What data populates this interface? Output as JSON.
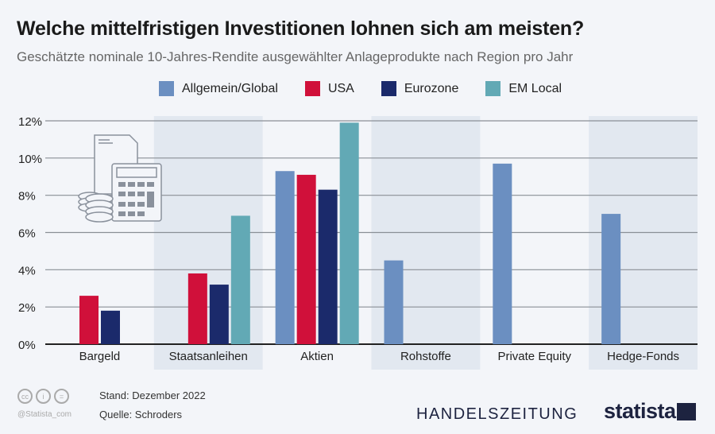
{
  "chart_data": {
    "type": "bar",
    "title": "Welche mittelfristigen Investitionen lohnen sich am meisten?",
    "subtitle": "Geschätzte nominale 10-Jahres-Rendite ausgewählter Anlageprodukte nach Region pro Jahr",
    "categories": [
      "Bargeld",
      "Staatsanleihen",
      "Aktien",
      "Rohstoffe",
      "Private Equity",
      "Hedge-Fonds"
    ],
    "series": [
      {
        "name": "Allgemein/Global",
        "color": "#6b8fc1",
        "values": [
          null,
          null,
          9.3,
          4.5,
          9.7,
          7.0
        ]
      },
      {
        "name": "USA",
        "color": "#d0103a",
        "values": [
          2.6,
          3.8,
          9.1,
          null,
          null,
          null
        ]
      },
      {
        "name": "Eurozone",
        "color": "#1b2a6b",
        "values": [
          1.8,
          3.2,
          8.3,
          null,
          null,
          null
        ]
      },
      {
        "name": "EM Local",
        "color": "#62a9b5",
        "values": [
          null,
          6.9,
          11.9,
          null,
          null,
          null
        ]
      }
    ],
    "yticks": [
      "0%",
      "2%",
      "4%",
      "6%",
      "8%",
      "10%",
      "12%"
    ],
    "ylim": [
      0,
      12
    ],
    "grid": true,
    "legend": "top",
    "xlabel": "",
    "ylabel": ""
  },
  "footer": {
    "stand": "Stand: Dezember 2022",
    "quelle": "Quelle: Schroders",
    "handle": "@Statista_com",
    "publisher": "HANDELSZEITUNG",
    "brand": "statista"
  },
  "colors": {
    "band": "#e2e8f0",
    "grid": "#8a8f96"
  }
}
